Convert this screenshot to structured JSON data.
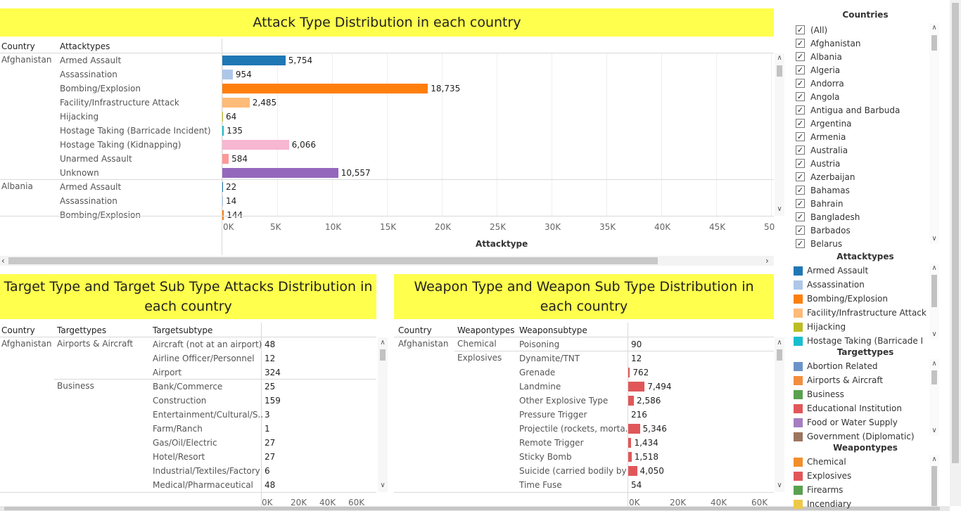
{
  "attack_panel": {
    "title": "Attack Type Distribution in each country",
    "col_country": "Country",
    "col_attacktypes": "Attacktypes",
    "axis_title": "Attacktype",
    "ticks": [
      "0K",
      "5K",
      "10K",
      "15K",
      "20K",
      "25K",
      "30K",
      "35K",
      "40K",
      "45K",
      "50"
    ],
    "groups": [
      {
        "country": "Afghanistan",
        "rows": [
          {
            "label": "Armed Assault",
            "value": "5,754"
          },
          {
            "label": "Assassination",
            "value": "954"
          },
          {
            "label": "Bombing/Explosion",
            "value": "18,735"
          },
          {
            "label": "Facility/Infrastructure Attack",
            "value": "2,485"
          },
          {
            "label": "Hijacking",
            "value": "64"
          },
          {
            "label": "Hostage Taking (Barricade Incident)",
            "value": "135"
          },
          {
            "label": "Hostage Taking (Kidnapping)",
            "value": "6,066"
          },
          {
            "label": "Unarmed Assault",
            "value": "584"
          },
          {
            "label": "Unknown",
            "value": "10,557"
          }
        ]
      },
      {
        "country": "Albania",
        "rows": [
          {
            "label": "Armed Assault",
            "value": "22"
          },
          {
            "label": "Assassination",
            "value": "14"
          },
          {
            "label": "Bombing/Explosion",
            "value": "144"
          }
        ]
      }
    ]
  },
  "target_panel": {
    "title": "Target Type and Target Sub Type Attacks Distribution in each country",
    "col_country": "Country",
    "col_types": "Targettypes",
    "col_subtypes": "Targetsubtype",
    "ticks": [
      "0K",
      "20K",
      "40K",
      "60K"
    ],
    "country": "Afghanistan",
    "groups": [
      {
        "type": "Airports & Aircraft",
        "rows": [
          {
            "label": "Aircraft (not at an airport)",
            "value": "48"
          },
          {
            "label": "Airline Officer/Personnel",
            "value": "12"
          },
          {
            "label": "Airport",
            "value": "324"
          }
        ]
      },
      {
        "type": "Business",
        "rows": [
          {
            "label": "Bank/Commerce",
            "value": "25"
          },
          {
            "label": "Construction",
            "value": "159"
          },
          {
            "label": "Entertainment/Cultural/S..",
            "value": "3"
          },
          {
            "label": "Farm/Ranch",
            "value": "1"
          },
          {
            "label": "Gas/Oil/Electric",
            "value": "27"
          },
          {
            "label": "Hotel/Resort",
            "value": "27"
          },
          {
            "label": "Industrial/Textiles/Factory",
            "value": "6"
          },
          {
            "label": "Medical/Pharmaceutical",
            "value": "48"
          }
        ]
      }
    ]
  },
  "weapon_panel": {
    "title": "Weapon Type and Weapon Sub Type Distribution in each country",
    "col_country": "Country",
    "col_types": "Weapontypes",
    "col_subtypes": "Weaponsubtype",
    "ticks": [
      "0K",
      "20K",
      "40K",
      "60K"
    ],
    "country": "Afghanistan",
    "groups": [
      {
        "type": "Chemical",
        "rows": [
          {
            "label": "Poisoning",
            "value": "90"
          }
        ]
      },
      {
        "type": "Explosives",
        "rows": [
          {
            "label": "Dynamite/TNT",
            "value": "12"
          },
          {
            "label": "Grenade",
            "value": "762"
          },
          {
            "label": "Landmine",
            "value": "7,494"
          },
          {
            "label": "Other Explosive Type",
            "value": "2,586"
          },
          {
            "label": "Pressure Trigger",
            "value": "216"
          },
          {
            "label": "Projectile (rockets, morta..",
            "value": "5,346"
          },
          {
            "label": "Remote Trigger",
            "value": "1,434"
          },
          {
            "label": "Sticky Bomb",
            "value": "1,518"
          },
          {
            "label": "Suicide (carried bodily by ..",
            "value": "4,050"
          },
          {
            "label": "Time Fuse",
            "value": "54"
          }
        ]
      }
    ]
  },
  "filters": {
    "countries_title": "Countries",
    "countries": [
      "(All)",
      "Afghanistan",
      "Albania",
      "Algeria",
      "Andorra",
      "Angola",
      "Antigua and Barbuda",
      "Argentina",
      "Armenia",
      "Australia",
      "Austria",
      "Azerbaijan",
      "Bahamas",
      "Bahrain",
      "Bangladesh",
      "Barbados",
      "Belarus"
    ],
    "attacktypes_title": "Attacktypes",
    "attacktypes": [
      {
        "label": "Armed Assault",
        "color": "#1f77b4"
      },
      {
        "label": "Assassination",
        "color": "#aec7e8"
      },
      {
        "label": "Bombing/Explosion",
        "color": "#ff7f0e"
      },
      {
        "label": "Facility/Infrastructure Attack",
        "color": "#ffbb78"
      },
      {
        "label": "Hijacking",
        "color": "#bcbd22"
      },
      {
        "label": "Hostage Taking (Barricade I",
        "color": "#17becf"
      }
    ],
    "targettypes_title": "Targettypes",
    "targettypes": [
      {
        "label": "Abortion Related",
        "color": "#6b93c9"
      },
      {
        "label": "Airports & Aircraft",
        "color": "#f28e3f"
      },
      {
        "label": "Business",
        "color": "#59a14f"
      },
      {
        "label": "Educational Institution",
        "color": "#e15759"
      },
      {
        "label": "Food or Water Supply",
        "color": "#a77dc2"
      },
      {
        "label": "Government (Diplomatic)",
        "color": "#9c755f"
      }
    ],
    "weapontypes_title": "Weapontypes",
    "weapontypes": [
      {
        "label": "Chemical",
        "color": "#f28e2b"
      },
      {
        "label": "Explosives",
        "color": "#e15759"
      },
      {
        "label": "Firearms",
        "color": "#59a14f"
      },
      {
        "label": "Incendiary",
        "color": "#edc948"
      }
    ]
  },
  "colors": {
    "title_band": "#ffff4d",
    "attack_bars": [
      "#1f77b4",
      "#aec7e8",
      "#ff7f0e",
      "#ffbb78",
      "#bcbd22",
      "#17becf",
      "#f7b6d2",
      "#ff9896",
      "#9467bd"
    ],
    "explosives_bar": "#e15759",
    "chemical_bar": "#f28e2b",
    "airports_bar": "#f28e3f",
    "business_bar": "#59a14f"
  },
  "chart_data": [
    {
      "type": "bar",
      "title": "Attack Type Distribution in each country",
      "xlabel": "Attacktype",
      "xlim": [
        0,
        50000
      ],
      "series": [
        {
          "name": "Afghanistan",
          "categories": [
            "Armed Assault",
            "Assassination",
            "Bombing/Explosion",
            "Facility/Infrastructure Attack",
            "Hijacking",
            "Hostage Taking (Barricade Incident)",
            "Hostage Taking (Kidnapping)",
            "Unarmed Assault",
            "Unknown"
          ],
          "values": [
            5754,
            954,
            18735,
            2485,
            64,
            135,
            6066,
            584,
            10557
          ]
        },
        {
          "name": "Albania",
          "categories": [
            "Armed Assault",
            "Assassination",
            "Bombing/Explosion"
          ],
          "values": [
            22,
            14,
            144
          ]
        }
      ]
    },
    {
      "type": "bar",
      "title": "Target Type and Target Sub Type Attacks Distribution in each country",
      "xlim": [
        0,
        70000
      ],
      "categories": [
        "Aircraft (not at an airport)",
        "Airline Officer/Personnel",
        "Airport",
        "Bank/Commerce",
        "Construction",
        "Entertainment/Cultural/S..",
        "Farm/Ranch",
        "Gas/Oil/Electric",
        "Hotel/Resort",
        "Industrial/Textiles/Factory",
        "Medical/Pharmaceutical"
      ],
      "values": [
        48,
        12,
        324,
        25,
        159,
        3,
        1,
        27,
        27,
        6,
        48
      ]
    },
    {
      "type": "bar",
      "title": "Weapon Type and Weapon Sub Type Distribution in each country",
      "xlim": [
        0,
        70000
      ],
      "categories": [
        "Poisoning",
        "Dynamite/TNT",
        "Grenade",
        "Landmine",
        "Other Explosive Type",
        "Pressure Trigger",
        "Projectile (rockets, morta..",
        "Remote Trigger",
        "Sticky Bomb",
        "Suicide (carried bodily by ..",
        "Time Fuse"
      ],
      "values": [
        90,
        12,
        762,
        7494,
        2586,
        216,
        5346,
        1434,
        1518,
        4050,
        54
      ]
    }
  ]
}
